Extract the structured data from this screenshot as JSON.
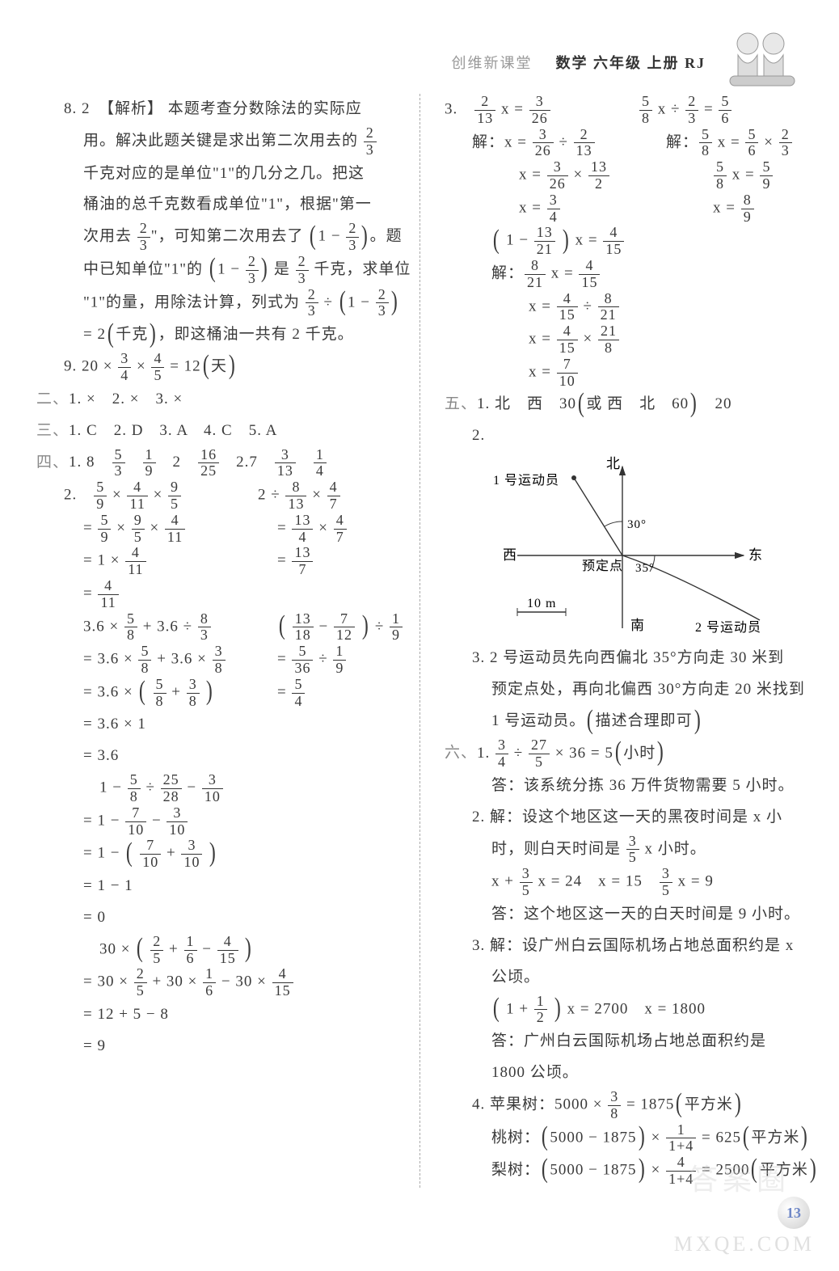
{
  "header": {
    "brand": "创维新课堂",
    "subject": "数学 六年级 上册 RJ"
  },
  "left": {
    "q8": [
      "8. 2　【解析】 本题考查分数除法的实际应",
      "用。解决此题关键是求出第二次用去的 {2/3}",
      "千克对应的是单位\"1\"的几分之几。把这",
      "桶油的总千克数看成单位\"1\"，根据\"第一",
      "次用去 {2/3}\"，可知第二次用去了 (1 − {2/3})。题",
      "中已知单位\"1\"的 (1 − {2/3}) 是 {2/3} 千克，求单位",
      "\"1\"的量，用除法计算，列式为 {2/3} ÷ (1 − {2/3})",
      "= 2(千克)，即这桶油一共有 2 千克。"
    ],
    "q9": "9. 20 × {3/4} × {4/5} = 12(天)",
    "sec2": "二、1. ×　2. ×　3. ×",
    "sec3": "三、1. C　2. D　3. A　4. C　5. A",
    "sec4_1": "四、1. 8　{5/3}　{1/9}　2　{16/25}　2.7　{3/13}　{1/4}",
    "calc": {
      "a1_head_l": "2.　{5/9} × {4/11} × {9/5}",
      "a1_head_r": "2 ÷ {8/13} × {4/7}",
      "a1_l": [
        "= {5/9} × {9/5} × {4/11}",
        "= 1 × {4/11}",
        "= {4/11}"
      ],
      "a1_r": [
        "= {13/4} × {4/7}",
        "= {13/7}"
      ],
      "a2_head_l": "3.6 × {5/8} + 3.6 ÷ {8/3}",
      "a2_head_r": "( {13/18} − {7/12} ) ÷ {1/9}",
      "a2_l": [
        "= 3.6 × {5/8} + 3.6 × {3/8}",
        "= 3.6 × ( {5/8} + {3/8} )",
        "= 3.6 × 1",
        "= 3.6"
      ],
      "a2_r": [
        "= {5/36} ÷ {1/9}",
        "= {5/4}"
      ],
      "a3_head": "1 − {5/8} ÷ {25/28} − {3/10}",
      "a3": [
        "= 1 − {7/10} − {3/10}",
        "= 1 − ( {7/10} + {3/10} )",
        "= 1 − 1",
        "= 0"
      ],
      "a4_head": "30 × ( {2/5} + {1/6} − {4/15} )",
      "a4": [
        "= 30 × {2/5} + 30 × {1/6} − 30 × {4/15}",
        "= 12 + 5 − 8",
        "= 9"
      ]
    }
  },
  "right": {
    "eq3": {
      "h_l": "3.　{2/13} x = {3/26}",
      "h_r": "{5/8} x ÷ {2/3} = {5/6}",
      "l": [
        "解：x = {3/26} ÷ {2/13}",
        "x = {3/26} × {13/2}",
        "x = {3/4}"
      ],
      "r": [
        "解：{5/8} x = {5/6} × {2/3}",
        "{5/8} x = {5/9}",
        "x = {8/9}"
      ],
      "c_head": "( 1 − {13/21} ) x = {4/15}",
      "c": [
        "解：{8/21} x = {4/15}",
        "x = {4/15} ÷ {8/21}",
        "x = {4/15} × {21/8}",
        "x = {7/10}"
      ]
    },
    "sec5_1": "五、1. 北　西　30(或 西　北　60)　20",
    "sec5_2": "2.",
    "diagram": {
      "north": "北",
      "south": "南",
      "east": "东",
      "west": "西",
      "a1": "1 号运动员",
      "a2": "2 号运动员",
      "center": "预定点",
      "ang1": "30°",
      "ang2": "35°",
      "scale": "10 m"
    },
    "sec5_3": [
      "3. 2 号运动员先向西偏北 35°方向走 30 米到",
      "预定点处，再向北偏西 30°方向走 20 米找到",
      "1 号运动员。(描述合理即可)"
    ],
    "sec6_1a": "六、1. {3/4} ÷ {27/5} × 36 = 5(小时)",
    "sec6_1b": "答：该系统分拣 36 万件货物需要 5 小时。",
    "sec6_2": [
      "2. 解：设这个地区这一天的黑夜时间是 x 小",
      "时，则白天时间是 {3/5} x 小时。",
      "x + {3/5} x = 24　x = 15　{3/5} x = 9",
      "答：这个地区这一天的白天时间是 9 小时。"
    ],
    "sec6_3": [
      "3. 解：设广州白云国际机场占地总面积约是 x",
      "公顷。",
      "( 1 + {1/2} ) x = 2700　x = 1800",
      "答：广州白云国际机场占地总面积约是",
      "1800 公顷。"
    ],
    "sec6_4": [
      "4. 苹果树：5000 × {3/8} = 1875(平方米)",
      "桃树：(5000 − 1875) × {1/1+4} = 625(平方米)",
      "梨树：(5000 − 1875) × {4/1+4} = 2500(平方米)"
    ]
  },
  "pageNumber": "13",
  "watermark": "MXQE.COM",
  "watermark2": "答案圈"
}
